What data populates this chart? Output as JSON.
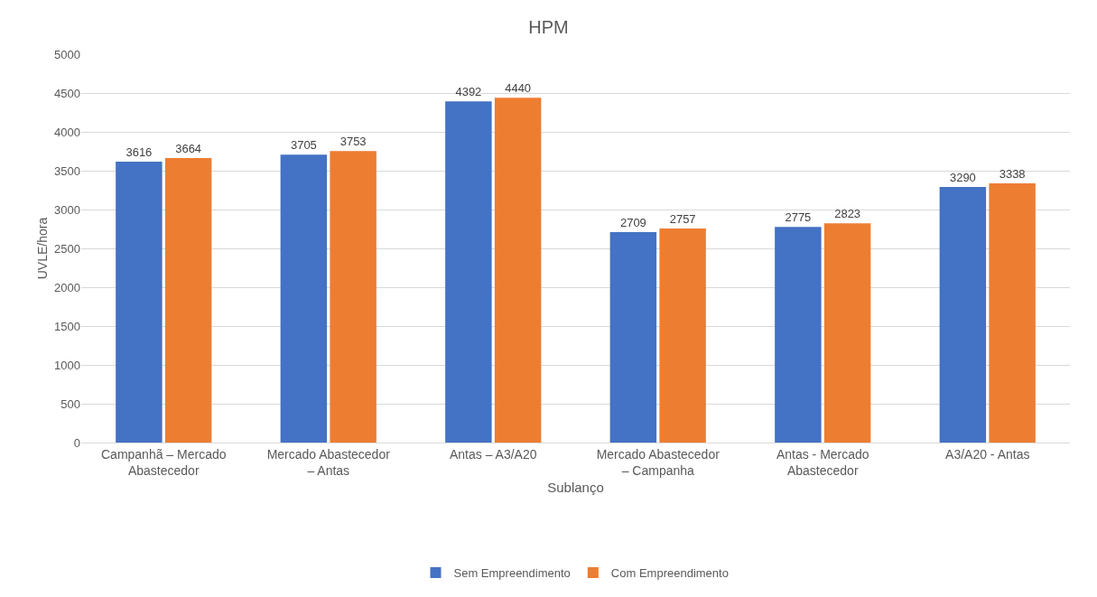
{
  "chart_data": {
    "type": "bar",
    "title": "HPM",
    "xlabel": "Sublanço",
    "ylabel": "UVLE/hora",
    "categories": [
      "Campanhã – Mercado Abastecedor",
      "Mercado Abastecedor – Antas",
      "Antas – A3/A20",
      "Mercado Abastecedor – Campanha",
      "Antas - Mercado Abastecedor",
      "A3/A20 - Antas"
    ],
    "series": [
      {
        "name": "Sem Empreendimento",
        "color": "#4472c4",
        "values": [
          3616,
          3705,
          4392,
          2709,
          2775,
          3290
        ]
      },
      {
        "name": "Com Empreendimento",
        "color": "#ed7d31",
        "values": [
          3664,
          3753,
          4440,
          2757,
          2823,
          3338
        ]
      }
    ],
    "ylim": [
      0,
      5000
    ],
    "yticks": [
      0,
      500,
      1000,
      1500,
      2000,
      2500,
      3000,
      3500,
      4000,
      4500,
      5000
    ],
    "grid": "y",
    "legend": "bottom",
    "data_labels": true
  }
}
